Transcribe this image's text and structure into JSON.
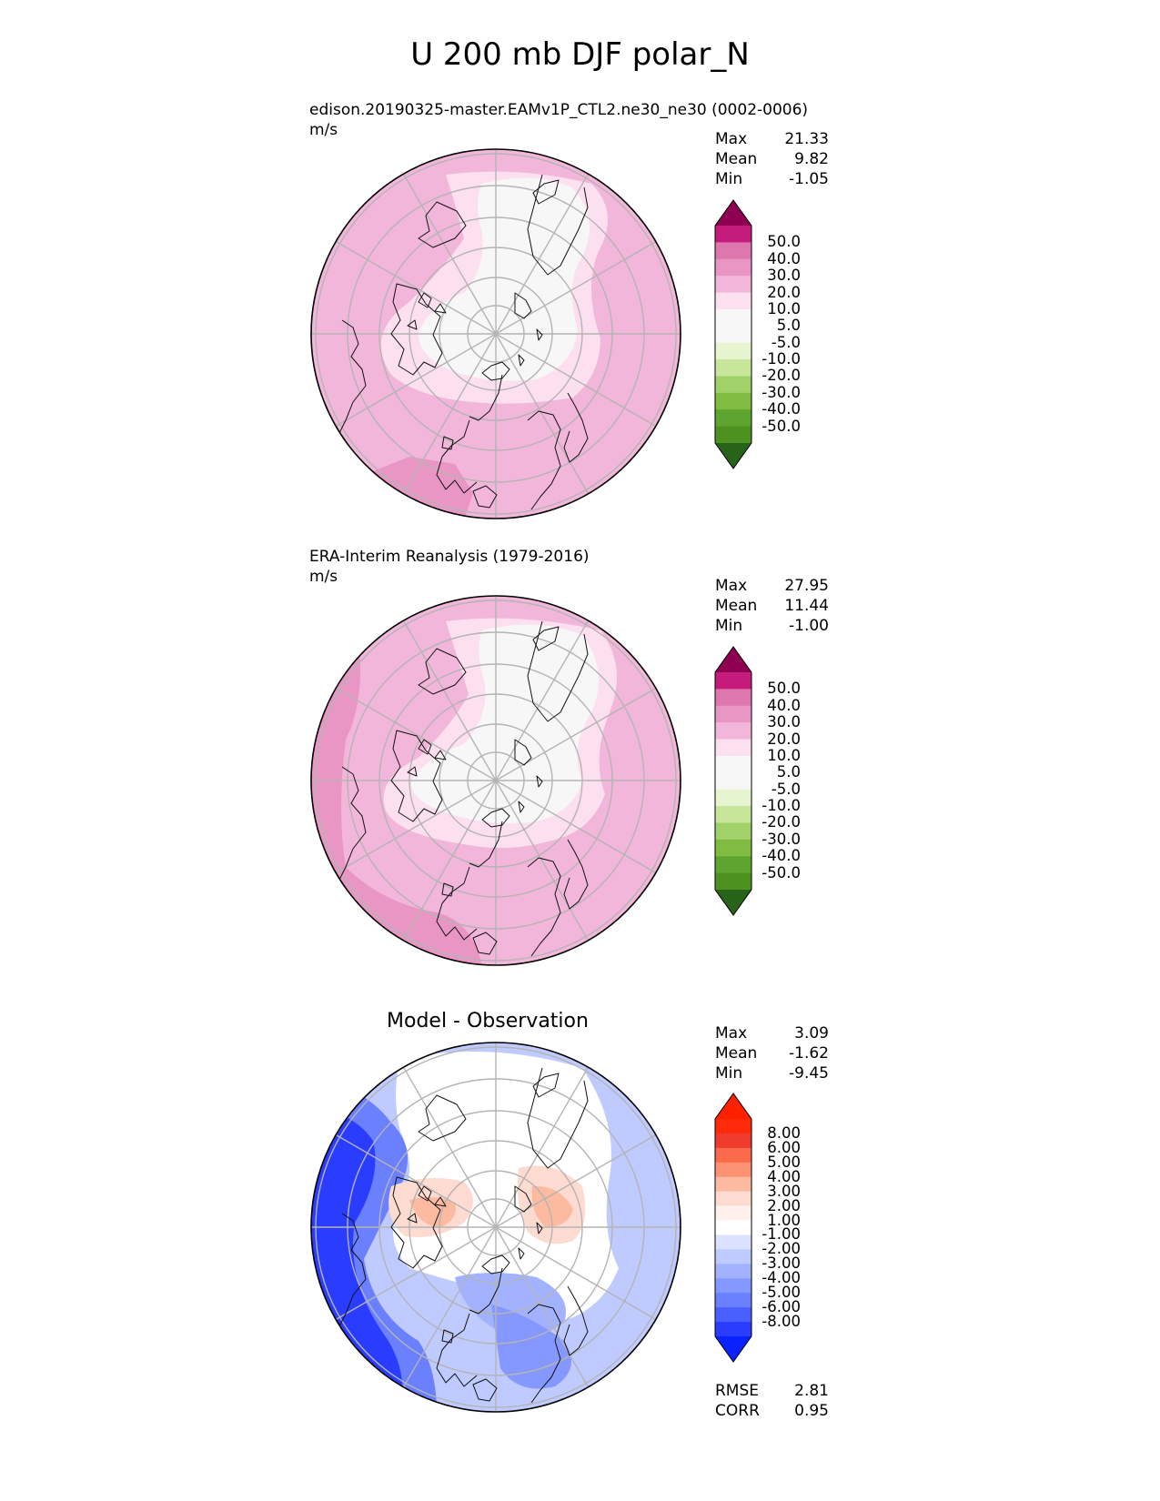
{
  "figure": {
    "title": "U 200 mb DJF polar_N",
    "colors": {
      "pink": [
        "#f7f7f7",
        "#fde0ef",
        "#f1b6da",
        "#e996c5",
        "#de77ae",
        "#c51b7d",
        "#8e0152"
      ],
      "green": [
        "#e6f5d0",
        "#c7e69a",
        "#a1d269",
        "#7fbc41",
        "#5ea52f",
        "#4d9221",
        "#276419"
      ],
      "diff_red": [
        "#fddbd0",
        "#fcbba1",
        "#fc9272",
        "#fb6a4a",
        "#ef3b2c",
        "#ff2a0a",
        "#ff2000"
      ],
      "diff_blue": [
        "#dbe2ff",
        "#bfcaff",
        "#a2b2ff",
        "#8598ff",
        "#6a80ff",
        "#4a5fff",
        "#2a3dff",
        "#0a22ff"
      ]
    }
  },
  "chart_data": [
    {
      "type": "heatmap",
      "projection": "north polar stereographic",
      "title": "edison.20190325-master.EAMv1P_CTL2.ne30_ne30 (0002-0006)",
      "units": "m/s",
      "stats": {
        "max_label": "Max",
        "max": "21.33",
        "mean_label": "Mean",
        "mean": "9.82",
        "min_label": "Min",
        "min": "-1.05"
      },
      "colorbar_ticks": [
        "50.0",
        "40.0",
        "30.0",
        "20.0",
        "10.0",
        "5.0",
        "-5.0",
        "-10.0",
        "-20.0",
        "-30.0",
        "-40.0",
        "-50.0"
      ],
      "levels": [
        -50,
        -40,
        -30,
        -20,
        -10,
        -5,
        5,
        10,
        20,
        30,
        40,
        50
      ]
    },
    {
      "type": "heatmap",
      "projection": "north polar stereographic",
      "title": "ERA-Interim Reanalysis (1979-2016)",
      "units": "m/s",
      "stats": {
        "max_label": "Max",
        "max": "27.95",
        "mean_label": "Mean",
        "mean": "11.44",
        "min_label": "Min",
        "min": "-1.00"
      },
      "colorbar_ticks": [
        "50.0",
        "40.0",
        "30.0",
        "20.0",
        "10.0",
        "5.0",
        "-5.0",
        "-10.0",
        "-20.0",
        "-30.0",
        "-40.0",
        "-50.0"
      ],
      "levels": [
        -50,
        -40,
        -30,
        -20,
        -10,
        -5,
        5,
        10,
        20,
        30,
        40,
        50
      ]
    },
    {
      "type": "heatmap",
      "projection": "north polar stereographic",
      "title": "Model - Observation",
      "stats": {
        "max_label": "Max",
        "max": "3.09",
        "mean_label": "Mean",
        "mean": "-1.62",
        "min_label": "Min",
        "min": "-9.45"
      },
      "colorbar_ticks": [
        "8.00",
        "6.00",
        "5.00",
        "4.00",
        "3.00",
        "2.00",
        "1.00",
        "-1.00",
        "-2.00",
        "-3.00",
        "-4.00",
        "-5.00",
        "-6.00",
        "-8.00"
      ],
      "levels": [
        -8,
        -6,
        -5,
        -4,
        -3,
        -2,
        -1,
        1,
        2,
        3,
        4,
        5,
        6,
        8
      ],
      "metrics": {
        "rmse_label": "RMSE",
        "rmse": "2.81",
        "corr_label": "CORR",
        "corr": "0.95"
      }
    }
  ]
}
